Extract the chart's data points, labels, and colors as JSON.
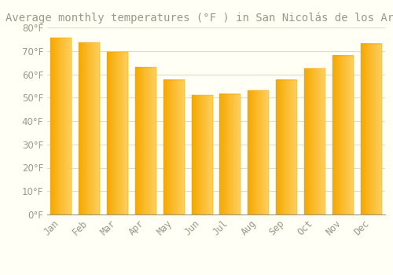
{
  "title": "Average monthly temperatures (°F ) in San Nicolás de los Arroyos",
  "months": [
    "Jan",
    "Feb",
    "Mar",
    "Apr",
    "May",
    "Jun",
    "Jul",
    "Aug",
    "Sep",
    "Oct",
    "Nov",
    "Dec"
  ],
  "values": [
    75.5,
    73.5,
    69.5,
    63.0,
    57.5,
    51.0,
    51.5,
    53.0,
    57.5,
    62.5,
    68.0,
    73.0
  ],
  "bar_color_left": "#F5A800",
  "bar_color_right": "#FFD060",
  "background_color": "#FFFFF5",
  "grid_color": "#DDDDCC",
  "text_color": "#999988",
  "ylim": [
    0,
    80
  ],
  "yticks": [
    0,
    10,
    20,
    30,
    40,
    50,
    60,
    70,
    80
  ],
  "title_fontsize": 10,
  "tick_fontsize": 8.5,
  "bar_width": 0.75
}
